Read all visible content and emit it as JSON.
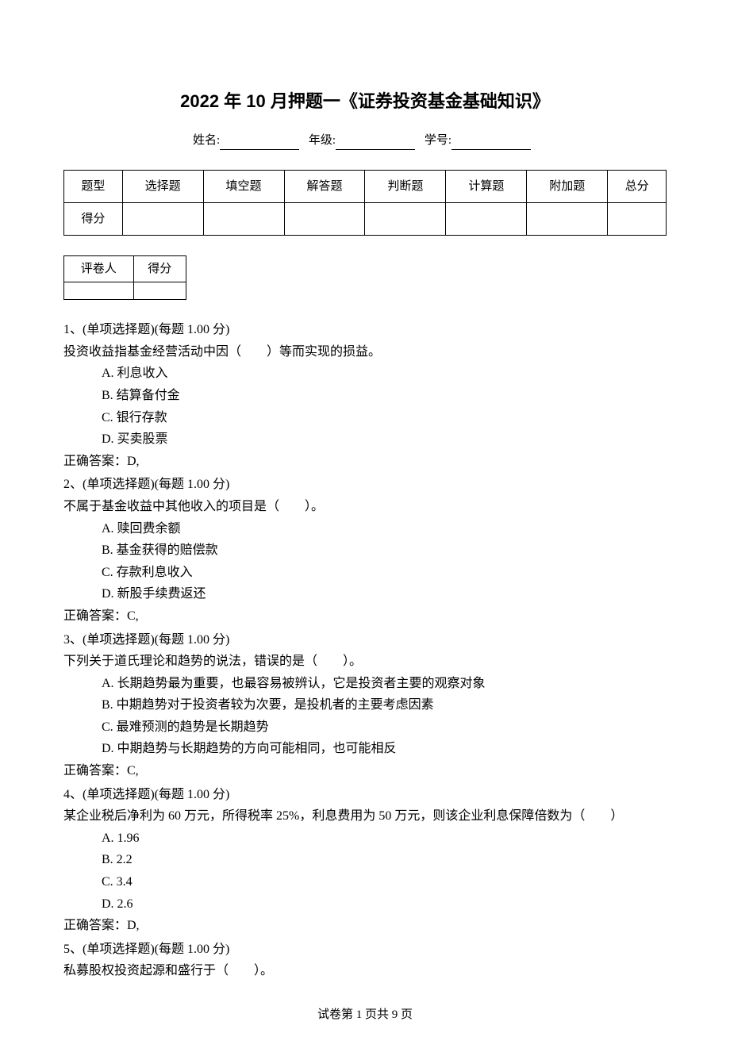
{
  "title": "2022 年 10 月押题一《证券投资基金基础知识》",
  "info": {
    "name_label": "姓名:",
    "grade_label": "年级:",
    "id_label": "学号:"
  },
  "score_table": {
    "headers": [
      "题型",
      "选择题",
      "填空题",
      "解答题",
      "判断题",
      "计算题",
      "附加题",
      "总分"
    ],
    "row_label": "得分"
  },
  "grader_table": {
    "headers": [
      "评卷人",
      "得分"
    ]
  },
  "questions": [
    {
      "num": "1、",
      "type": "(单项选择题)(每题 1.00 分)",
      "stem": "投资收益指基金经营活动中因（　　）等而实现的损益。",
      "options": [
        "A. 利息收入",
        "B. 结算备付金",
        "C. 银行存款",
        "D. 买卖股票"
      ],
      "answer": "正确答案：D,"
    },
    {
      "num": "2、",
      "type": "(单项选择题)(每题 1.00 分)",
      "stem": "不属于基金收益中其他收入的项目是（　　）。",
      "options": [
        "A. 赎回费余额",
        "B. 基金获得的赔偿款",
        "C. 存款利息收入",
        "D. 新股手续费返还"
      ],
      "answer": "正确答案：C,"
    },
    {
      "num": "3、",
      "type": "(单项选择题)(每题 1.00 分)",
      "stem": "下列关于道氏理论和趋势的说法，错误的是（　　）。",
      "options": [
        "A. 长期趋势最为重要，也最容易被辨认，它是投资者主要的观察对象",
        "B. 中期趋势对于投资者较为次要，是投机者的主要考虑因素",
        "C. 最难预测的趋势是长期趋势",
        "D. 中期趋势与长期趋势的方向可能相同，也可能相反"
      ],
      "answer": "正确答案：C,"
    },
    {
      "num": "4、",
      "type": "(单项选择题)(每题 1.00 分)",
      "stem": "某企业税后净利为 60 万元，所得税率 25%，利息费用为 50 万元，则该企业利息保障倍数为（　　）",
      "options": [
        "A. 1.96",
        "B. 2.2",
        "C. 3.4",
        "D. 2.6"
      ],
      "answer": "正确答案：D,"
    },
    {
      "num": "5、",
      "type": "(单项选择题)(每题 1.00 分)",
      "stem": "私募股权投资起源和盛行于（　　）。",
      "options": [],
      "answer": ""
    }
  ],
  "footer": "试卷第 1 页共 9 页"
}
